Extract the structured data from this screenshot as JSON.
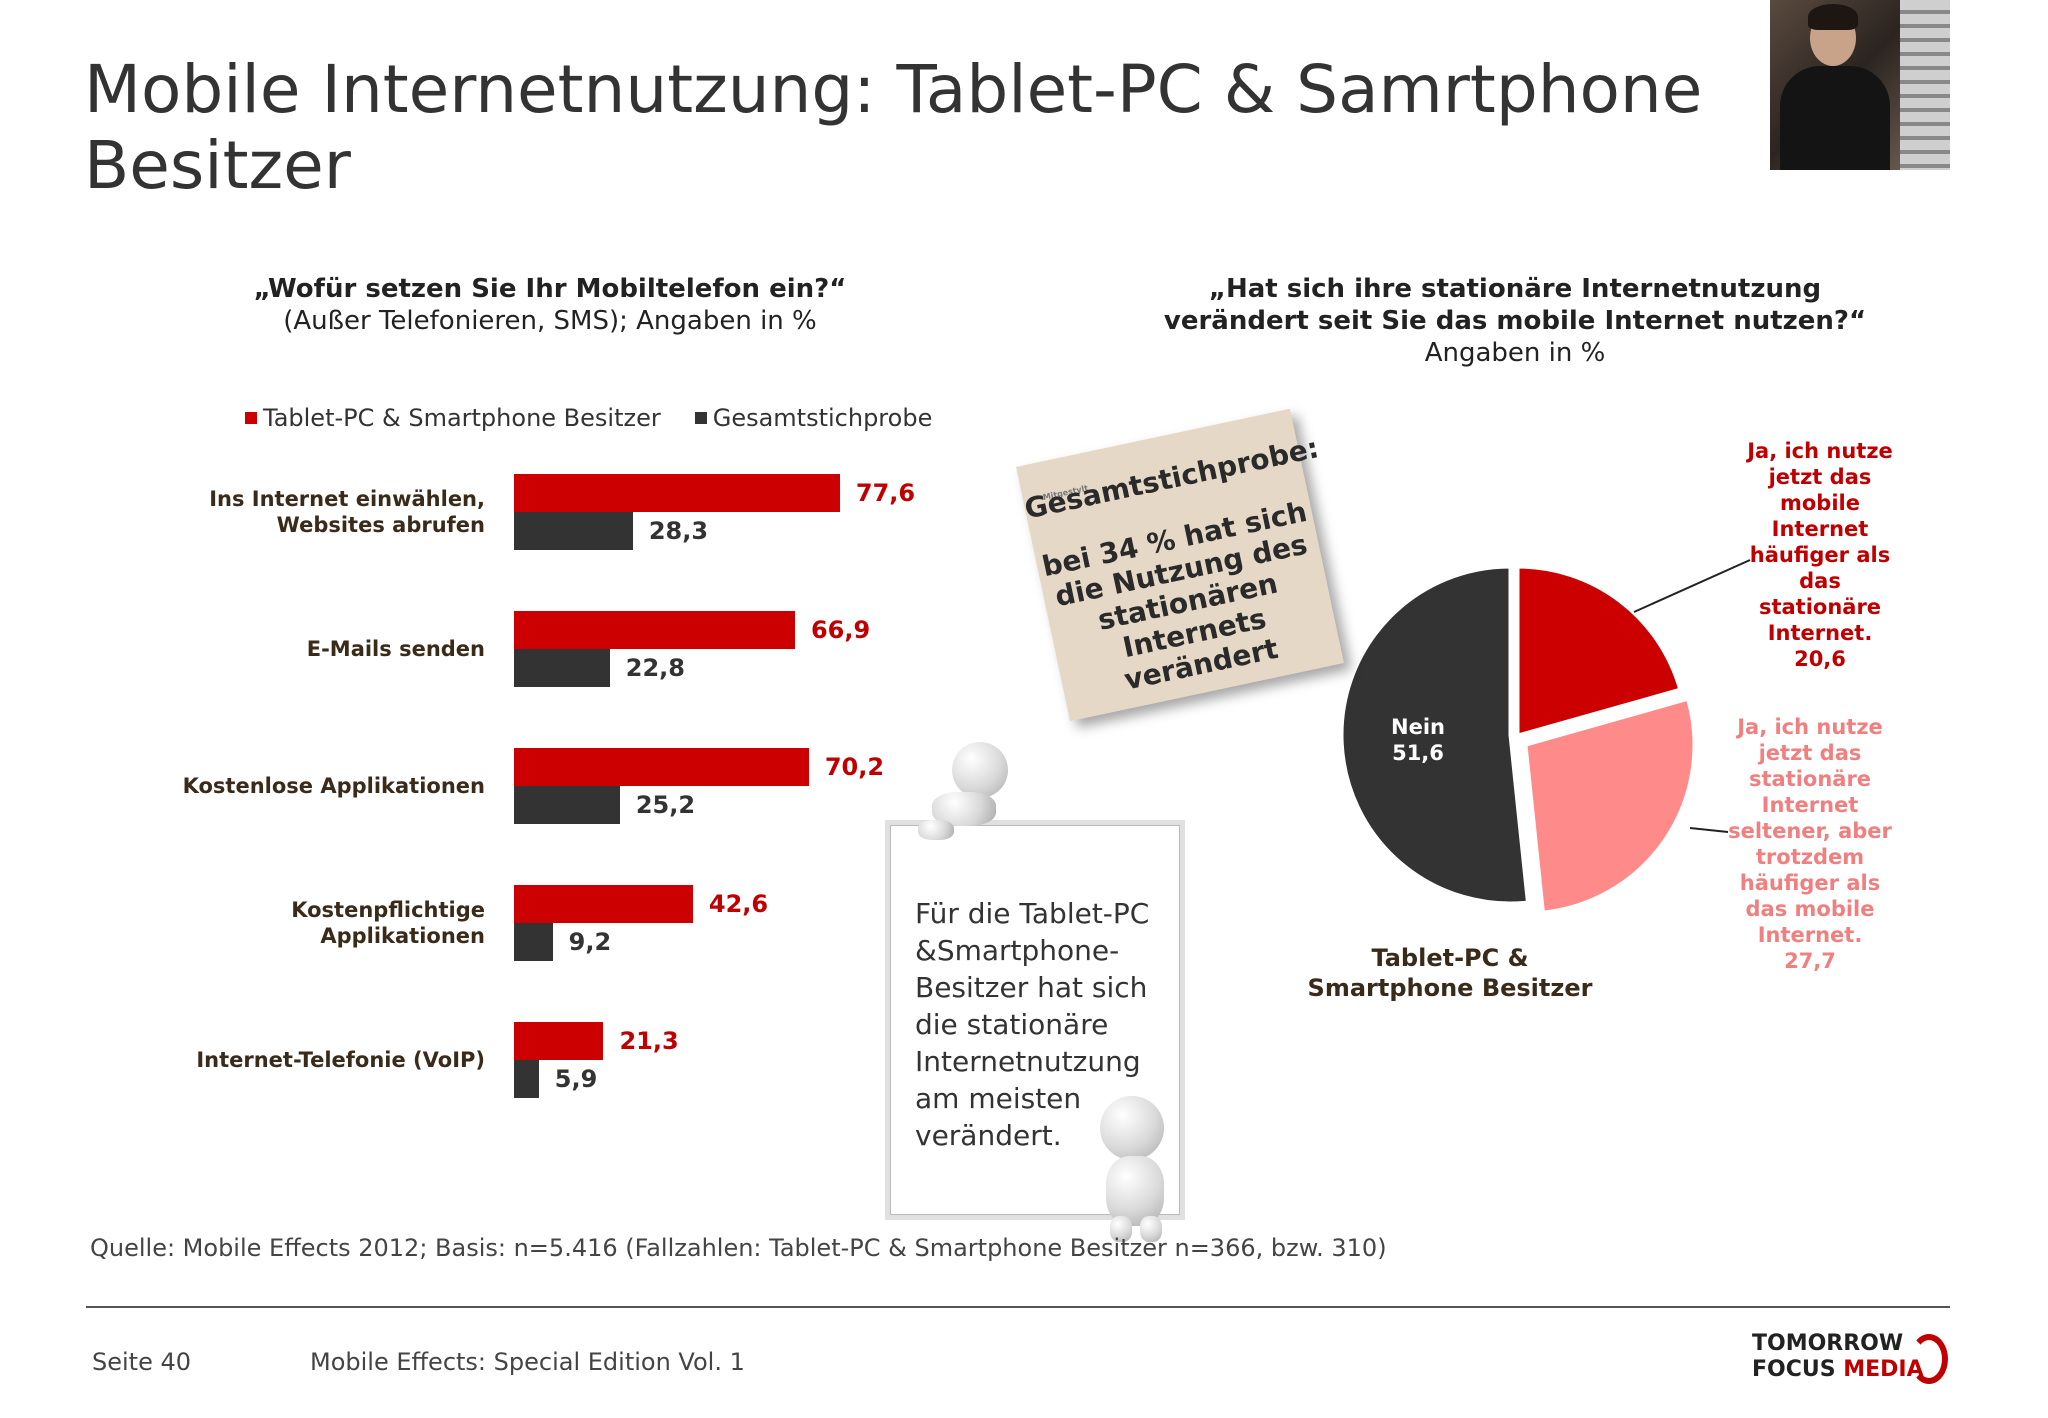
{
  "title": "Mobile Internetnutzung: Tablet-PC & Samrtphone Besitzer",
  "left_question": {
    "bold": "„Wofür setzen Sie Ihr Mobiltelefon ein?“",
    "sub": "(Außer Telefonieren, SMS); Angaben in %"
  },
  "right_question": {
    "bold_line1": "„Hat sich ihre stationäre Internetnutzung",
    "bold_line2": "verändert seit Sie das mobile Internet nutzen?“",
    "sub": "Angaben in %"
  },
  "note": {
    "small": "Mitgestylt",
    "heading": "Gesamtstichprobe:",
    "body_lines": [
      "bei 34 % hat sich",
      "die Nutzung des",
      "stationären",
      "Internets verändert"
    ]
  },
  "board_text": "Für die Tablet-PC &Smartphone-Besitzer hat sich die stationäre Internetnutzung am meisten verändert.",
  "footer": {
    "source": "Quelle: Mobile Effects 2012; Basis: n=5.416 (Fallzahlen: Tablet-PC  & Smartphone Besitzer n=366, bzw. 310)",
    "page": "Seite 40",
    "edition": "Mobile Effects: Special Edition Vol. 1",
    "logo_line1": "TOMORROW",
    "logo_line2a": "FOCUS ",
    "logo_line2b": "MEDIA"
  },
  "colors": {
    "red": "#cc0000",
    "dark": "#333333",
    "pink": "#ff8a8a",
    "red_text": "#c00000",
    "pink_text": "#f08080"
  },
  "chart_data": [
    {
      "type": "bar",
      "orientation": "horizontal",
      "categories": [
        [
          "Ins Internet einwählen,",
          "Websites abrufen"
        ],
        [
          "E-Mails senden"
        ],
        [
          "Kostenlose Applikationen"
        ],
        [
          "Kostenpflichtige",
          "Applikationen"
        ],
        [
          "Internet-Telefonie (VoIP)"
        ]
      ],
      "series": [
        {
          "name": "Tablet-PC & Smartphone Besitzer",
          "color": "#cc0000",
          "values": [
            77.6,
            66.9,
            70.2,
            42.6,
            21.3
          ],
          "labels": [
            "77,6",
            "66,9",
            "70,2",
            "42,6",
            "21,3"
          ]
        },
        {
          "name": "Gesamtstichprobe",
          "color": "#333333",
          "values": [
            28.3,
            22.8,
            25.2,
            9.2,
            5.9
          ],
          "labels": [
            "28,3",
            "22,8",
            "25,2",
            "9,2",
            "5,9"
          ]
        }
      ],
      "xlim": [
        0,
        100
      ],
      "legend": "top"
    },
    {
      "type": "pie",
      "title_line1": "Tablet-PC &",
      "title_line2": "Smartphone Besitzer",
      "slices": [
        {
          "label_lines": [
            "Ja, ich nutze",
            "jetzt das",
            "mobile",
            "Internet",
            "häufiger als",
            "das",
            "stationäre",
            "Internet.",
            "20,6"
          ],
          "value": 20.6,
          "color": "#cc0000"
        },
        {
          "label_lines": [
            "Ja, ich nutze",
            "jetzt das",
            "stationäre",
            "Internet",
            "seltener, aber",
            "trotzdem",
            "häufiger als",
            "das mobile",
            "Internet.",
            "27,7"
          ],
          "value": 27.7,
          "color": "#ff8a8a"
        },
        {
          "label_lines": [
            "Nein",
            "51,6"
          ],
          "value": 51.6,
          "color": "#333333"
        }
      ]
    }
  ]
}
